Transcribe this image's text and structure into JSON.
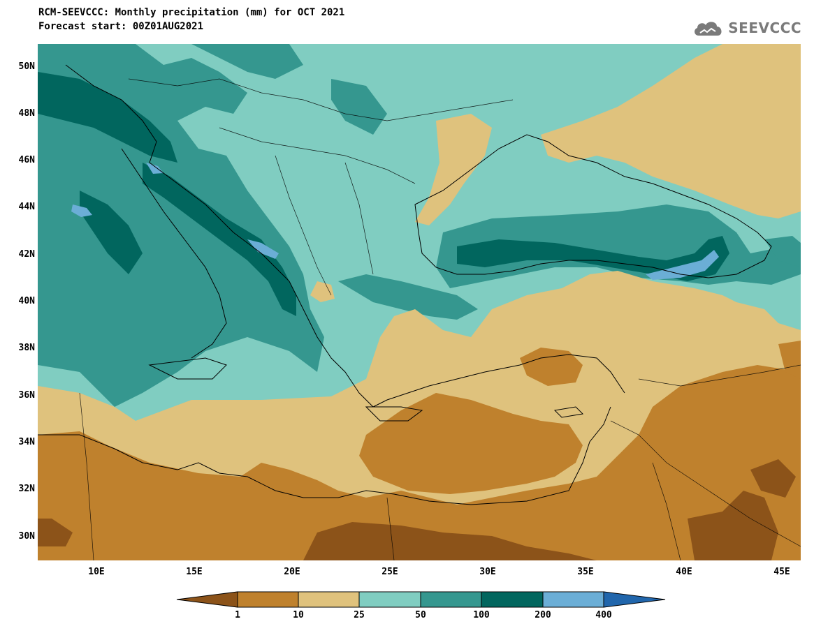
{
  "title": {
    "line1": "RCM-SEEVCCC: Monthly precipitation (mm) for OCT 2021",
    "line2": "Forecast start: 00Z01AUG2021"
  },
  "logo": {
    "text": "SEEVCCC",
    "icon": "cloud-icon"
  },
  "map": {
    "lat_labels": [
      "50N",
      "48N",
      "46N",
      "44N",
      "42N",
      "40N",
      "38N",
      "36N",
      "34N",
      "32N",
      "30N"
    ],
    "lon_labels": [
      "10E",
      "15E",
      "20E",
      "25E",
      "30E",
      "35E",
      "40E",
      "45E"
    ],
    "lat_values": [
      50,
      48,
      46,
      44,
      42,
      40,
      38,
      36,
      34,
      32,
      30
    ],
    "lon_values": [
      10,
      15,
      20,
      25,
      30,
      35,
      40,
      45
    ],
    "lon_range": [
      7,
      46
    ],
    "lat_range": [
      29,
      51
    ]
  },
  "colorbar": {
    "levels": [
      "1",
      "10",
      "25",
      "50",
      "100",
      "200",
      "400"
    ],
    "colors": {
      "below_1": "#8c5319",
      "1_10": "#bf812d",
      "10_25": "#dfc27d",
      "25_50": "#80cdc1",
      "50_100": "#35978f",
      "100_200": "#01665e",
      "200_400": "#6baed6",
      "above_400": "#2166ac"
    }
  }
}
